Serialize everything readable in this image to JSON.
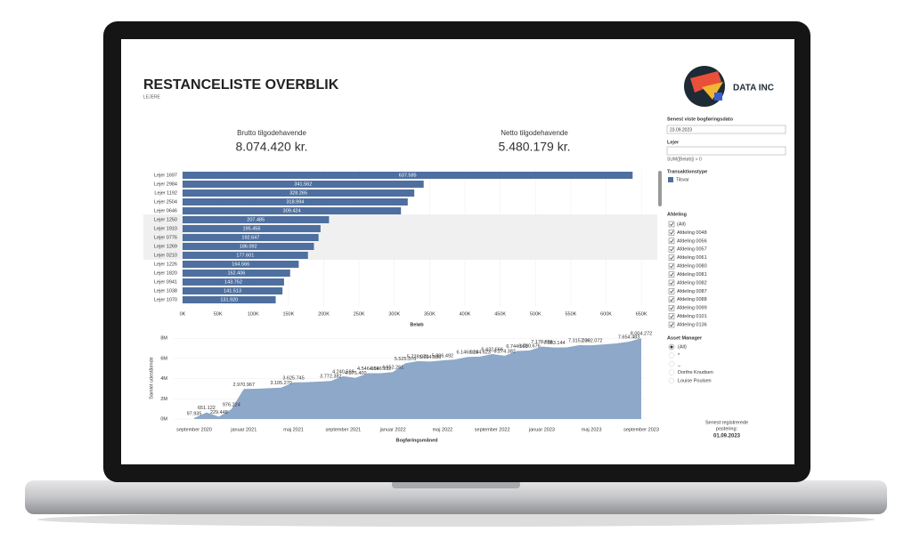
{
  "header": {
    "title": "RESTANCELISTE OVERBLIK",
    "subtitle": "LEJERE"
  },
  "kpis": [
    {
      "label": "Brutto tilgodehavende",
      "value": "8.074.420 kr."
    },
    {
      "label": "Netto tilgodehavende",
      "value": "5.480.179 kr."
    }
  ],
  "chart_data": [
    {
      "type": "bar",
      "orientation": "horizontal",
      "categories": [
        "Lejer 1697",
        "Lejer 2984",
        "Lejer 1192",
        "Lejer 2504",
        "Lejer 0646",
        "Lejer 1250",
        "Lejer 1910",
        "Lejer 0776",
        "Lejer 1269",
        "Lejer 0210",
        "Lejer 1226",
        "Lejer 1820",
        "Lejer 0941",
        "Lejer 1038",
        "Lejer 1070"
      ],
      "values": [
        637585,
        341562,
        328265,
        318994,
        309424,
        207485,
        195456,
        192647,
        186092,
        177601,
        164566,
        152406,
        143752,
        141513,
        131920
      ],
      "value_labels": [
        "637.585",
        "341.562",
        "328.265",
        "318.994",
        "309.424",
        "207.485",
        "195.456",
        "192.647",
        "186.092",
        "177.601",
        "164.566",
        "152.406",
        "143.752",
        "141.513",
        "131.920"
      ],
      "color": "#4e6f9f",
      "xlim": [
        0,
        670000
      ],
      "xticks": [
        {
          "value": 0,
          "label": "0K"
        },
        {
          "value": 50000,
          "label": "50K"
        },
        {
          "value": 100000,
          "label": "100K"
        },
        {
          "value": 150000,
          "label": "150K"
        },
        {
          "value": 200000,
          "label": "200K"
        },
        {
          "value": 250000,
          "label": "250K"
        },
        {
          "value": 300000,
          "label": "300K"
        },
        {
          "value": 350000,
          "label": "350K"
        },
        {
          "value": 400000,
          "label": "400K"
        },
        {
          "value": 450000,
          "label": "450K"
        },
        {
          "value": 500000,
          "label": "500K"
        },
        {
          "value": 550000,
          "label": "550K"
        },
        {
          "value": 600000,
          "label": "600K"
        },
        {
          "value": 650000,
          "label": "650K"
        }
      ],
      "x_label": "Beløb"
    },
    {
      "type": "area",
      "categories": [
        "september 2020",
        null,
        null,
        null,
        "januar 2021",
        null,
        null,
        null,
        "maj 2021",
        null,
        null,
        null,
        "september 2021",
        null,
        null,
        null,
        "januar 2022",
        null,
        null,
        null,
        "maj 2022",
        null,
        null,
        null,
        "september 2022",
        null,
        null,
        null,
        "januar 2023",
        null,
        null,
        null,
        "maj 2023",
        null,
        null,
        null,
        "september 2023"
      ],
      "values": [
        97935,
        651122,
        229448,
        976224,
        2970967,
        3000000,
        3050000,
        3105270,
        3625745,
        3650000,
        3700000,
        3772382,
        4240569,
        4075400,
        4546069,
        4546232,
        4652261,
        5525370,
        5728070,
        5694936,
        5806492,
        5900000,
        6146924,
        6184623,
        6432566,
        6274382,
        6744966,
        6790676,
        7178886,
        7083144,
        7100000,
        7315206,
        7302072,
        7400000,
        7500000,
        7654483,
        8004272
      ],
      "value_labels": [
        "97.935",
        "651.122",
        "229.448",
        "976.224",
        "2.970.967",
        null,
        null,
        "3.105.270",
        "3.625.745",
        null,
        null,
        "3.772.382",
        "4.240.569",
        "4.075.400",
        "4.546.069",
        "4.546.232",
        "4.652.261",
        "5.525.370",
        "5.728.070",
        "5.694.936",
        "5.806.492",
        null,
        "6.146.924",
        "6.184.623",
        "6.432.566",
        "6.274.382",
        "6.744.966",
        "6.790.676",
        "7.178.886",
        "7.083.144",
        null,
        "7.315.206",
        "7.302.072",
        null,
        null,
        "7.654.483",
        "8.004.272"
      ],
      "color": "#8da8c8",
      "ylim": [
        0,
        8200000
      ],
      "yticks": [
        {
          "value": 0,
          "label": "0M"
        },
        {
          "value": 2000000,
          "label": "2M"
        },
        {
          "value": 4000000,
          "label": "4M"
        },
        {
          "value": 6000000,
          "label": "6M"
        },
        {
          "value": 8000000,
          "label": "8M"
        }
      ],
      "x_label": "Bogføringsmåned",
      "y_label": "Samlet udestående"
    }
  ],
  "logo": {
    "text": "DATA INC"
  },
  "filters": {
    "date": {
      "label": "Senest viste bogføringsdato",
      "value": "23.09.2023"
    },
    "tenant": {
      "label": "Lejer",
      "condition": "SUM([Beløb]) > 0"
    },
    "transaction_type": {
      "label": "Transaktionstype",
      "items": [
        "Tilsvar"
      ]
    },
    "department": {
      "label": "Afdeling",
      "items": [
        "(All)",
        "Afdeling 0048",
        "Afdeling 0056",
        "Afdeling 0057",
        "Afdeling 0061",
        "Afdeling 0080",
        "Afdeling 0081",
        "Afdeling 0082",
        "Afdeling 0087",
        "Afdeling 0088",
        "Afdeling 0099",
        "Afdeling 0101",
        "Afdeling 0136"
      ]
    },
    "asset_manager": {
      "label": "Asset Manager",
      "items": [
        "(All)",
        "*",
        "_",
        "Dorthe Knudsen",
        "Louise Poulsen"
      ]
    }
  },
  "footer": {
    "label_lines": [
      "Senest registrerede",
      "postering:"
    ],
    "date": "01.09.2023"
  }
}
